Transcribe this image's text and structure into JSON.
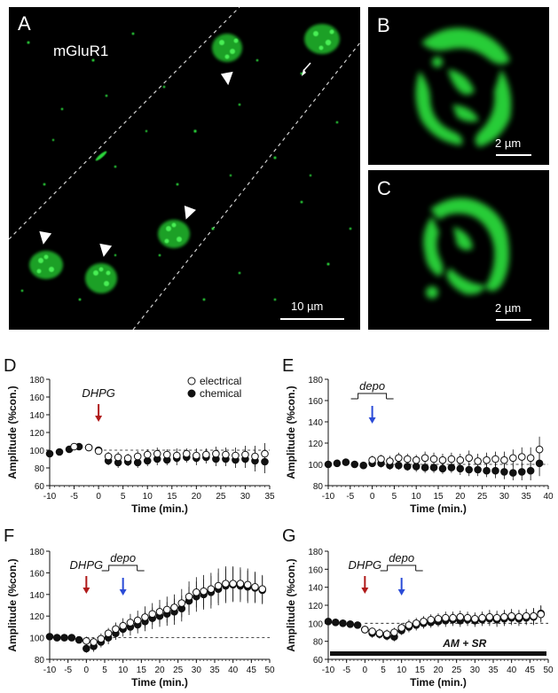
{
  "figure": {
    "micrographs": {
      "A": {
        "label": "A",
        "marker": "mGluR1",
        "scale_bar": "10 µm"
      },
      "B": {
        "label": "B",
        "scale_bar": "2 µm"
      },
      "C": {
        "label": "C",
        "scale_bar": "2 µm"
      }
    }
  },
  "chart_data": [
    {
      "panel": "D",
      "type": "scatter",
      "xlabel": "Time (min.)",
      "ylabel": "Amplitude (%con.)",
      "xlim": [
        -10,
        35
      ],
      "ylim": [
        60,
        180
      ],
      "xticks": [
        "-10",
        "-5",
        "0",
        "5",
        "10",
        "15",
        "20",
        "25",
        "30",
        "35"
      ],
      "yticks": [
        "60",
        "80",
        "100",
        "120",
        "140",
        "160",
        "180"
      ],
      "legend": [
        "electrical",
        "chemical"
      ],
      "annotations": [
        {
          "text": "DHPG",
          "arrow_x": 0,
          "color": "#b01a1a"
        }
      ],
      "series": [
        {
          "name": "electrical",
          "x": [
            -5,
            -2,
            0,
            2,
            4,
            6,
            8,
            10,
            12,
            14,
            16,
            18,
            20,
            22,
            24,
            26,
            28,
            30,
            32,
            34
          ],
          "y": [
            104,
            103,
            99,
            93,
            92,
            91,
            93,
            95,
            96,
            95,
            94,
            96,
            94,
            95,
            96,
            95,
            94,
            95,
            93,
            96
          ],
          "err": [
            3,
            3,
            3,
            5,
            6,
            5,
            6,
            6,
            7,
            6,
            8,
            6,
            8,
            7,
            8,
            8,
            9,
            10,
            12,
            12
          ]
        },
        {
          "name": "chemical",
          "x": [
            -10,
            -8,
            -6,
            -4,
            -2,
            0,
            2,
            4,
            6,
            8,
            10,
            12,
            14,
            16,
            18,
            20,
            22,
            24,
            26,
            28,
            30,
            32,
            34
          ],
          "y": [
            96,
            98,
            101,
            104,
            103,
            100,
            88,
            86,
            87,
            86,
            88,
            90,
            89,
            91,
            92,
            91,
            92,
            90,
            90,
            89,
            90,
            88,
            87
          ],
          "err": [
            3,
            3,
            3,
            3,
            3,
            3,
            5,
            6,
            5,
            6,
            6,
            7,
            6,
            8,
            6,
            8,
            7,
            8,
            8,
            9,
            10,
            12,
            13
          ]
        }
      ]
    },
    {
      "panel": "E",
      "type": "scatter",
      "xlabel": "Time (min.)",
      "ylabel": "Amplitude (%con.)",
      "xlim": [
        -10,
        40
      ],
      "ylim": [
        80,
        180
      ],
      "xticks": [
        "-10",
        "-5",
        "0",
        "5",
        "10",
        "15",
        "20",
        "25",
        "30",
        "35",
        "40"
      ],
      "yticks": [
        "80",
        "100",
        "120",
        "140",
        "160",
        "180"
      ],
      "annotations": [
        {
          "text": "depo",
          "arrow_x": 0,
          "color": "#2a4bd7"
        }
      ],
      "series": [
        {
          "name": "electrical",
          "x": [
            0,
            2,
            4,
            6,
            8,
            10,
            12,
            14,
            16,
            18,
            20,
            22,
            24,
            26,
            28,
            30,
            32,
            34,
            36,
            38
          ],
          "y": [
            104,
            105,
            103,
            106,
            105,
            104,
            106,
            105,
            104,
            105,
            104,
            106,
            103,
            104,
            105,
            104,
            106,
            107,
            106,
            114
          ],
          "err": [
            4,
            4,
            5,
            5,
            5,
            5,
            6,
            6,
            6,
            6,
            6,
            7,
            7,
            7,
            7,
            8,
            8,
            9,
            10,
            12
          ]
        },
        {
          "name": "chemical",
          "x": [
            -10,
            -8,
            -6,
            -4,
            -2,
            0,
            2,
            4,
            6,
            8,
            10,
            12,
            14,
            16,
            18,
            20,
            22,
            24,
            26,
            28,
            30,
            32,
            34,
            36,
            38
          ],
          "y": [
            100,
            101,
            102,
            100,
            99,
            101,
            101,
            99,
            99,
            98,
            98,
            97,
            97,
            96,
            97,
            96,
            95,
            95,
            94,
            94,
            93,
            92,
            93,
            94,
            101
          ],
          "err": [
            2,
            2,
            2,
            2,
            2,
            3,
            4,
            4,
            4,
            4,
            5,
            5,
            5,
            5,
            5,
            6,
            6,
            6,
            6,
            7,
            7,
            7,
            8,
            9,
            12
          ]
        }
      ]
    },
    {
      "panel": "F",
      "type": "scatter",
      "xlabel": "Time (min.)",
      "ylabel": "Amplitude (%con.)",
      "xlim": [
        -10,
        50
      ],
      "ylim": [
        80,
        180
      ],
      "xticks": [
        "-10",
        "-5",
        "0",
        "5",
        "10",
        "15",
        "20",
        "25",
        "30",
        "35",
        "40",
        "45",
        "50"
      ],
      "yticks": [
        "80",
        "100",
        "120",
        "140",
        "160",
        "180"
      ],
      "annotations": [
        {
          "text": "DHPG",
          "arrow_x": 0,
          "color": "#b01a1a"
        },
        {
          "text": "depo",
          "arrow_x": 10,
          "color": "#2a4bd7"
        }
      ],
      "series": [
        {
          "name": "electrical",
          "x": [
            0,
            2,
            4,
            6,
            8,
            10,
            12,
            14,
            16,
            18,
            20,
            22,
            24,
            26,
            28,
            30,
            32,
            34,
            36,
            38,
            40,
            42,
            44,
            46,
            48
          ],
          "y": [
            97,
            96,
            99,
            104,
            108,
            111,
            114,
            116,
            119,
            122,
            124,
            126,
            128,
            132,
            138,
            142,
            143,
            145,
            148,
            150,
            150,
            150,
            149,
            147,
            145
          ],
          "err": [
            4,
            4,
            5,
            5,
            6,
            7,
            8,
            9,
            10,
            10,
            11,
            12,
            12,
            13,
            14,
            14,
            15,
            15,
            16,
            16,
            16,
            15,
            15,
            14,
            13
          ]
        },
        {
          "name": "chemical",
          "x": [
            -10,
            -8,
            -6,
            -4,
            -2,
            0,
            2,
            4,
            6,
            8,
            10,
            12,
            14,
            16,
            18,
            20,
            22,
            24,
            26,
            28,
            30,
            32,
            34,
            36,
            38,
            40,
            42,
            44,
            46,
            48
          ],
          "y": [
            101,
            100,
            100,
            100,
            98,
            90,
            92,
            96,
            100,
            104,
            108,
            110,
            112,
            115,
            118,
            120,
            122,
            124,
            127,
            134,
            138,
            140,
            142,
            145,
            148,
            149,
            148,
            147,
            146,
            144
          ],
          "err": [
            2,
            2,
            2,
            2,
            3,
            4,
            5,
            5,
            6,
            6,
            7,
            8,
            8,
            9,
            10,
            10,
            11,
            12,
            12,
            13,
            14,
            14,
            15,
            15,
            16,
            16,
            15,
            15,
            14,
            13
          ]
        }
      ]
    },
    {
      "panel": "G",
      "type": "scatter",
      "xlabel": "Time (min.)",
      "ylabel": "Amplitude (%con.)",
      "xlim": [
        -10,
        50
      ],
      "ylim": [
        60,
        180
      ],
      "xticks": [
        "-10",
        "-5",
        "0",
        "5",
        "10",
        "15",
        "20",
        "25",
        "30",
        "35",
        "40",
        "45",
        "50"
      ],
      "yticks": [
        "60",
        "80",
        "100",
        "120",
        "140",
        "160",
        "180"
      ],
      "bar_label": "AM + SR",
      "annotations": [
        {
          "text": "DHPG",
          "arrow_x": 0,
          "color": "#b01a1a"
        },
        {
          "text": "depo",
          "arrow_x": 10,
          "color": "#2a4bd7"
        }
      ],
      "series": [
        {
          "name": "electrical",
          "x": [
            0,
            2,
            4,
            6,
            8,
            10,
            12,
            14,
            16,
            18,
            20,
            22,
            24,
            26,
            28,
            30,
            32,
            34,
            36,
            38,
            40,
            42,
            44,
            46,
            48
          ],
          "y": [
            93,
            91,
            89,
            88,
            90,
            95,
            98,
            100,
            102,
            104,
            105,
            106,
            106,
            107,
            106,
            105,
            106,
            107,
            106,
            107,
            108,
            107,
            108,
            108,
            110
          ],
          "err": [
            4,
            4,
            5,
            5,
            5,
            5,
            6,
            6,
            6,
            6,
            6,
            7,
            7,
            7,
            7,
            7,
            7,
            8,
            8,
            8,
            8,
            8,
            8,
            9,
            9
          ]
        },
        {
          "name": "chemical",
          "x": [
            -10,
            -8,
            -6,
            -4,
            -2,
            0,
            2,
            4,
            6,
            8,
            10,
            12,
            14,
            16,
            18,
            20,
            22,
            24,
            26,
            28,
            30,
            32,
            34,
            36,
            38,
            40,
            42,
            44,
            46,
            48
          ],
          "y": [
            102,
            101,
            100,
            99,
            98,
            93,
            89,
            88,
            86,
            85,
            92,
            96,
            98,
            100,
            101,
            102,
            103,
            104,
            103,
            104,
            103,
            104,
            105,
            104,
            105,
            106,
            105,
            106,
            107,
            111
          ],
          "err": [
            2,
            2,
            2,
            2,
            2,
            4,
            5,
            5,
            5,
            5,
            5,
            6,
            6,
            6,
            6,
            6,
            7,
            7,
            7,
            7,
            7,
            7,
            8,
            8,
            8,
            8,
            8,
            8,
            9,
            9
          ]
        }
      ]
    }
  ]
}
